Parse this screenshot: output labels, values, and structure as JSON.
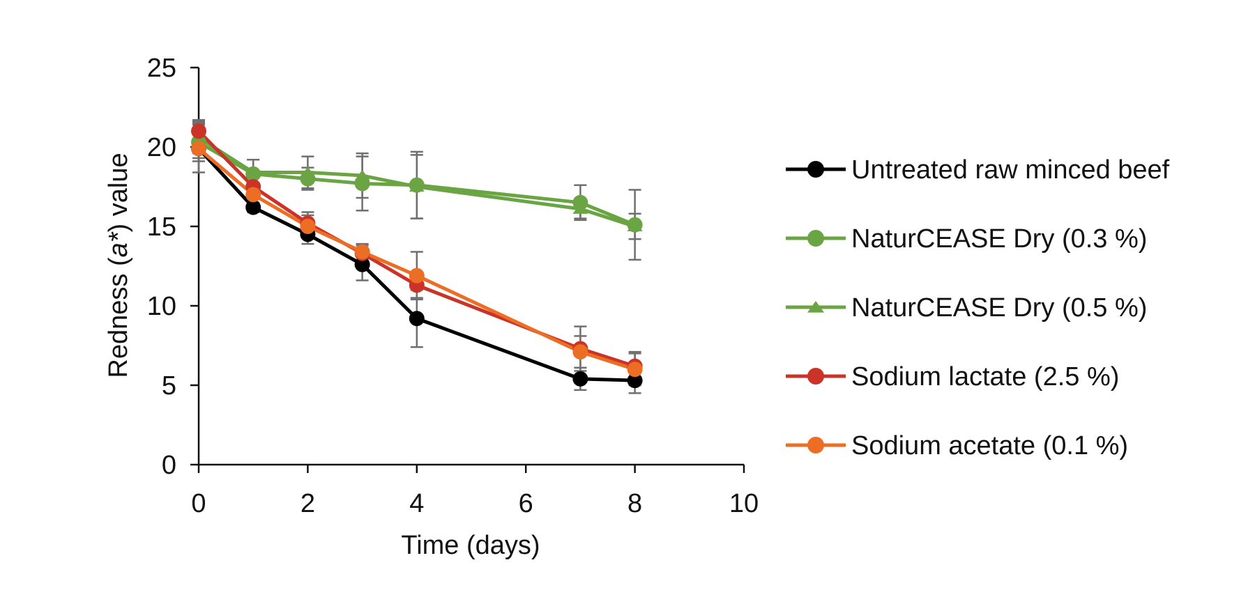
{
  "chart_data": {
    "type": "line",
    "title": "",
    "xlabel": "Time (days)",
    "ylabel_parts": [
      "Redness (",
      "a*",
      ") value"
    ],
    "xlim": [
      0,
      10
    ],
    "ylim": [
      0,
      25
    ],
    "xticks": [
      0,
      2,
      4,
      6,
      8,
      10
    ],
    "yticks": [
      0,
      5,
      10,
      15,
      20,
      25
    ],
    "grid": false,
    "legend_position": "right",
    "x": [
      0,
      1,
      2,
      3,
      4,
      7,
      8
    ],
    "series": [
      {
        "name": "Untreated raw minced beef",
        "color": "#000000",
        "marker": "circle",
        "values": [
          19.9,
          16.2,
          14.5,
          12.6,
          9.2,
          5.4,
          5.3
        ],
        "errors": [
          1.5,
          0.3,
          0.6,
          1.0,
          1.8,
          0.7,
          0.8
        ]
      },
      {
        "name": "NaturCEASE Dry (0.3 %)",
        "color": "#6aa443",
        "marker": "circle",
        "values": [
          20.3,
          18.3,
          18.0,
          17.7,
          17.6,
          16.5,
          15.1
        ],
        "errors": [
          1.2,
          0.9,
          0.7,
          1.7,
          2.1,
          1.1,
          2.2
        ]
      },
      {
        "name": "NaturCEASE Dry (0.5 %)",
        "color": "#6aa443",
        "marker": "triangle",
        "values": [
          20.6,
          18.4,
          18.4,
          18.2,
          17.5,
          16.1,
          15.0
        ],
        "errors": [
          1.0,
          0.8,
          1.0,
          1.4,
          2.0,
          0.6,
          0.8
        ]
      },
      {
        "name": "Sodium lactate (2.5 %)",
        "color": "#cc3328",
        "marker": "circle",
        "values": [
          21.0,
          17.5,
          15.2,
          13.3,
          11.3,
          7.3,
          6.2
        ],
        "errors": [
          0.7,
          0.6,
          0.7,
          0.5,
          0.8,
          1.4,
          0.9
        ]
      },
      {
        "name": "Sodium acetate (0.1 %)",
        "color": "#eb6e24",
        "marker": "circle",
        "values": [
          19.9,
          17.0,
          15.0,
          13.4,
          11.9,
          7.1,
          6.0
        ],
        "errors": [
          0.6,
          0.5,
          0.7,
          0.5,
          1.5,
          1.0,
          1.0
        ]
      }
    ]
  }
}
